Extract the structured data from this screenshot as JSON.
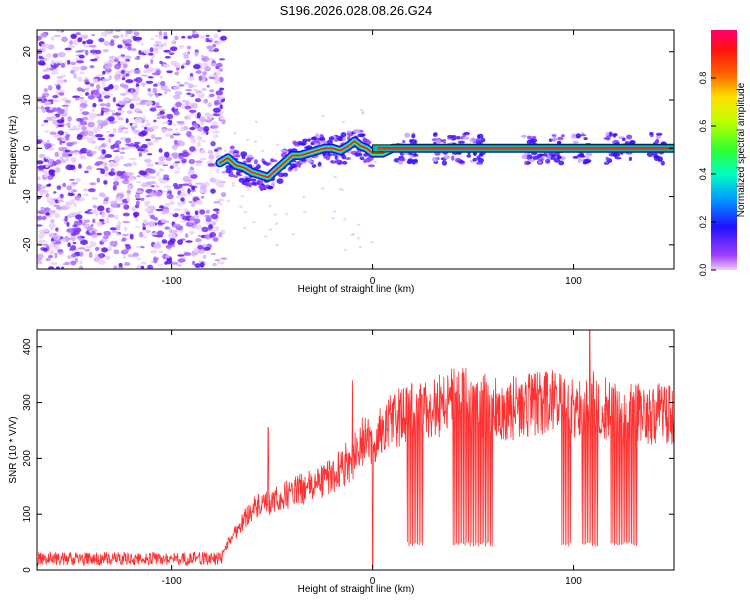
{
  "title": "S196.2026.028.08.26.G24",
  "colors": {
    "snr_line": "#ff3030",
    "frame": "#000000"
  },
  "chart_data": [
    {
      "type": "heatmap",
      "name": "spectrogram",
      "title": "S196.2026.028.08.26.G24",
      "xlabel": "Height of straight line (km)",
      "ylabel": "Frequency (Hz)",
      "xlim": [
        -167,
        150
      ],
      "ylim": [
        -25,
        24.5
      ],
      "xticks": [
        -100,
        0,
        100
      ],
      "xtick_labels": [
        "-100",
        "0",
        "100"
      ],
      "yticks": [
        20,
        10,
        0,
        -10,
        -20
      ],
      "ytick_labels": [
        "20",
        "10",
        "0",
        "-10",
        "-20"
      ],
      "colorbar": {
        "label": "Normalized spectral amplitude",
        "range": [
          0,
          1
        ],
        "ticks": [
          0.0,
          0.2,
          0.4,
          0.6,
          0.8
        ],
        "tick_labels": [
          "0.0",
          "0.2",
          "0.4",
          "0.6",
          "0.8"
        ]
      },
      "noise_region_x": [
        -167,
        -76
      ],
      "tone_track": {
        "x": [
          -76,
          -72,
          -68,
          -64,
          -60,
          -56,
          -52,
          -48,
          -44,
          -40,
          -36,
          -32,
          -28,
          -24,
          -20,
          -16,
          -12,
          -9,
          -6,
          -3,
          0,
          5,
          10,
          20,
          40,
          60,
          80,
          100,
          120,
          150
        ],
        "y": [
          -3,
          -2,
          -3.5,
          -4,
          -5,
          -5.5,
          -6,
          -4.5,
          -3,
          -1.5,
          -1.5,
          -1,
          -0.5,
          0,
          0,
          -0.5,
          0.5,
          1.5,
          0.5,
          0,
          -1,
          -1,
          0,
          0,
          0,
          0,
          0,
          0,
          0,
          0
        ]
      },
      "tone_bursts_x": [
        [
          -72,
          0
        ],
        [
          12,
          22
        ],
        [
          30,
          55
        ],
        [
          75,
          95
        ],
        [
          100,
          108
        ],
        [
          116,
          130
        ],
        [
          138,
          145
        ]
      ]
    },
    {
      "type": "line",
      "name": "snr",
      "xlabel": "Height of straight line (km)",
      "ylabel": "SNR (10 * V/V)",
      "xlim": [
        -167,
        150
      ],
      "ylim": [
        0,
        430
      ],
      "xticks": [
        -100,
        0,
        100
      ],
      "xtick_labels": [
        "-100",
        "0",
        "100"
      ],
      "yticks": [
        0,
        100,
        200,
        300,
        400
      ],
      "ytick_labels": [
        "0",
        "100",
        "200",
        "300",
        "400"
      ],
      "series": [
        {
          "name": "SNR",
          "envelope_x": [
            -167,
            -80,
            -75,
            -70,
            -60,
            -50,
            -40,
            -30,
            -20,
            -10,
            -5,
            0,
            5,
            10,
            20,
            30,
            40,
            50,
            60,
            70,
            80,
            90,
            100,
            110,
            120,
            130,
            140,
            150
          ],
          "envelope_y": [
            20,
            22,
            28,
            60,
            110,
            120,
            140,
            150,
            170,
            200,
            230,
            230,
            250,
            270,
            280,
            290,
            310,
            300,
            290,
            290,
            295,
            300,
            290,
            300,
            280,
            280,
            280,
            280
          ],
          "spikes": [
            {
              "x": 108,
              "y": 430
            },
            {
              "x": -10,
              "y": 340
            },
            {
              "x": -52,
              "y": 255
            },
            {
              "x": 0,
              "y": 5
            }
          ],
          "dropout_ranges_x": [
            [
              17,
              25
            ],
            [
              40,
              60
            ],
            [
              94,
              99
            ],
            [
              104,
              112
            ],
            [
              118,
              132
            ]
          ],
          "dropout_floor": 42
        }
      ]
    }
  ]
}
